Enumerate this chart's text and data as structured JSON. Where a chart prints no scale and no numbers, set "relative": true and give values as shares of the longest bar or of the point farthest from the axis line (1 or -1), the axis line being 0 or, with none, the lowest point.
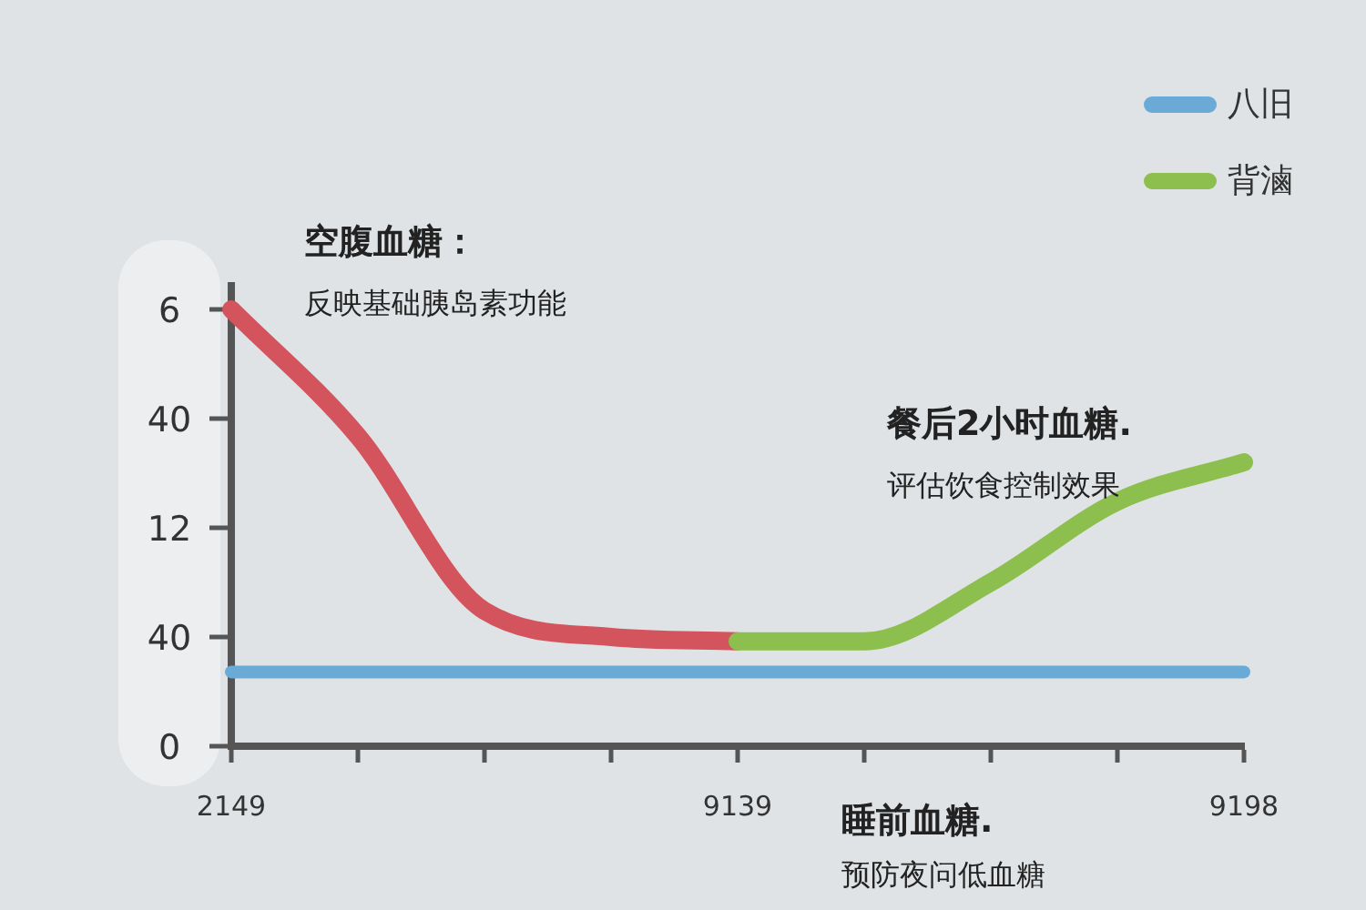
{
  "chart_data": {
    "type": "line",
    "relative": true,
    "categories": [
      "2149",
      null,
      null,
      null,
      "9139",
      null,
      null,
      null,
      "9198"
    ],
    "series": [
      {
        "name": "八旧",
        "color": "#6aaad6",
        "values": [
          0.17,
          0.17,
          0.17,
          0.17,
          0.17,
          0.17,
          0.17,
          0.17,
          0.17
        ]
      },
      {
        "name": "背滷",
        "color": "#8cbf4e",
        "values": [
          null,
          null,
          null,
          null,
          0.24,
          0.24,
          0.375,
          0.56,
          0.65
        ]
      },
      {
        "color": "#d4545e",
        "values": [
          1,
          0.71,
          0.31,
          0.25,
          0.24,
          null,
          null,
          null,
          null
        ]
      }
    ],
    "annotations": [
      "空腹血糖：",
      "反映基础胰岛素功能",
      "餐后2小时血糖.",
      "评估饮食控制效果",
      "睡前血糖.",
      "预防夜问低血糖",
      "6",
      "40",
      "12",
      "40",
      "0"
    ],
    "legend": "top right",
    "grid": false,
    "marker": "none",
    "line_style": "solid"
  }
}
